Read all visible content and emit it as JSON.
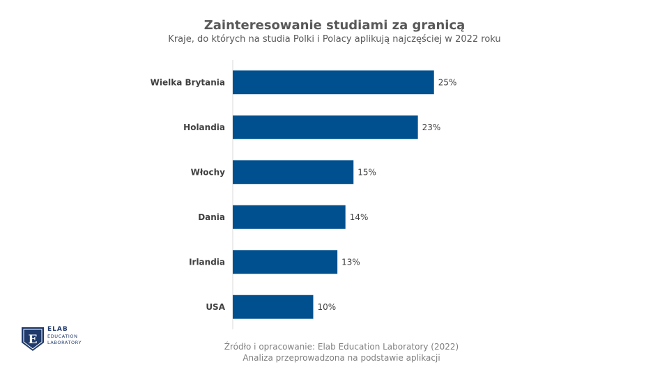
{
  "chart_data": {
    "type": "bar",
    "orientation": "horizontal",
    "title": "Zainteresowanie studiami za granicą",
    "subtitle": "Kraje, do których na studia Polki i Polacy aplikują najczęściej w 2022 roku",
    "categories": [
      "Wielka Brytania",
      "Holandia",
      "Włochy",
      "Dania",
      "Irlandia",
      "USA"
    ],
    "values": [
      25,
      23,
      15,
      14,
      13,
      10
    ],
    "value_labels": [
      "25%",
      "23%",
      "15%",
      "14%",
      "13%",
      "10%"
    ],
    "xlim": [
      0,
      40
    ],
    "grid": false,
    "bar_color": "#00508f"
  },
  "logo": {
    "letter": "E",
    "line1": "ELAB",
    "line2": "EDUCATION",
    "line3": "LABORATORY",
    "color": "#1f3a6b"
  },
  "source": {
    "line1": "Źródło i opracowanie: Elab Education Laboratory (2022)",
    "line2": "Analiza przeprowadzona na podstawie aplikacji"
  }
}
